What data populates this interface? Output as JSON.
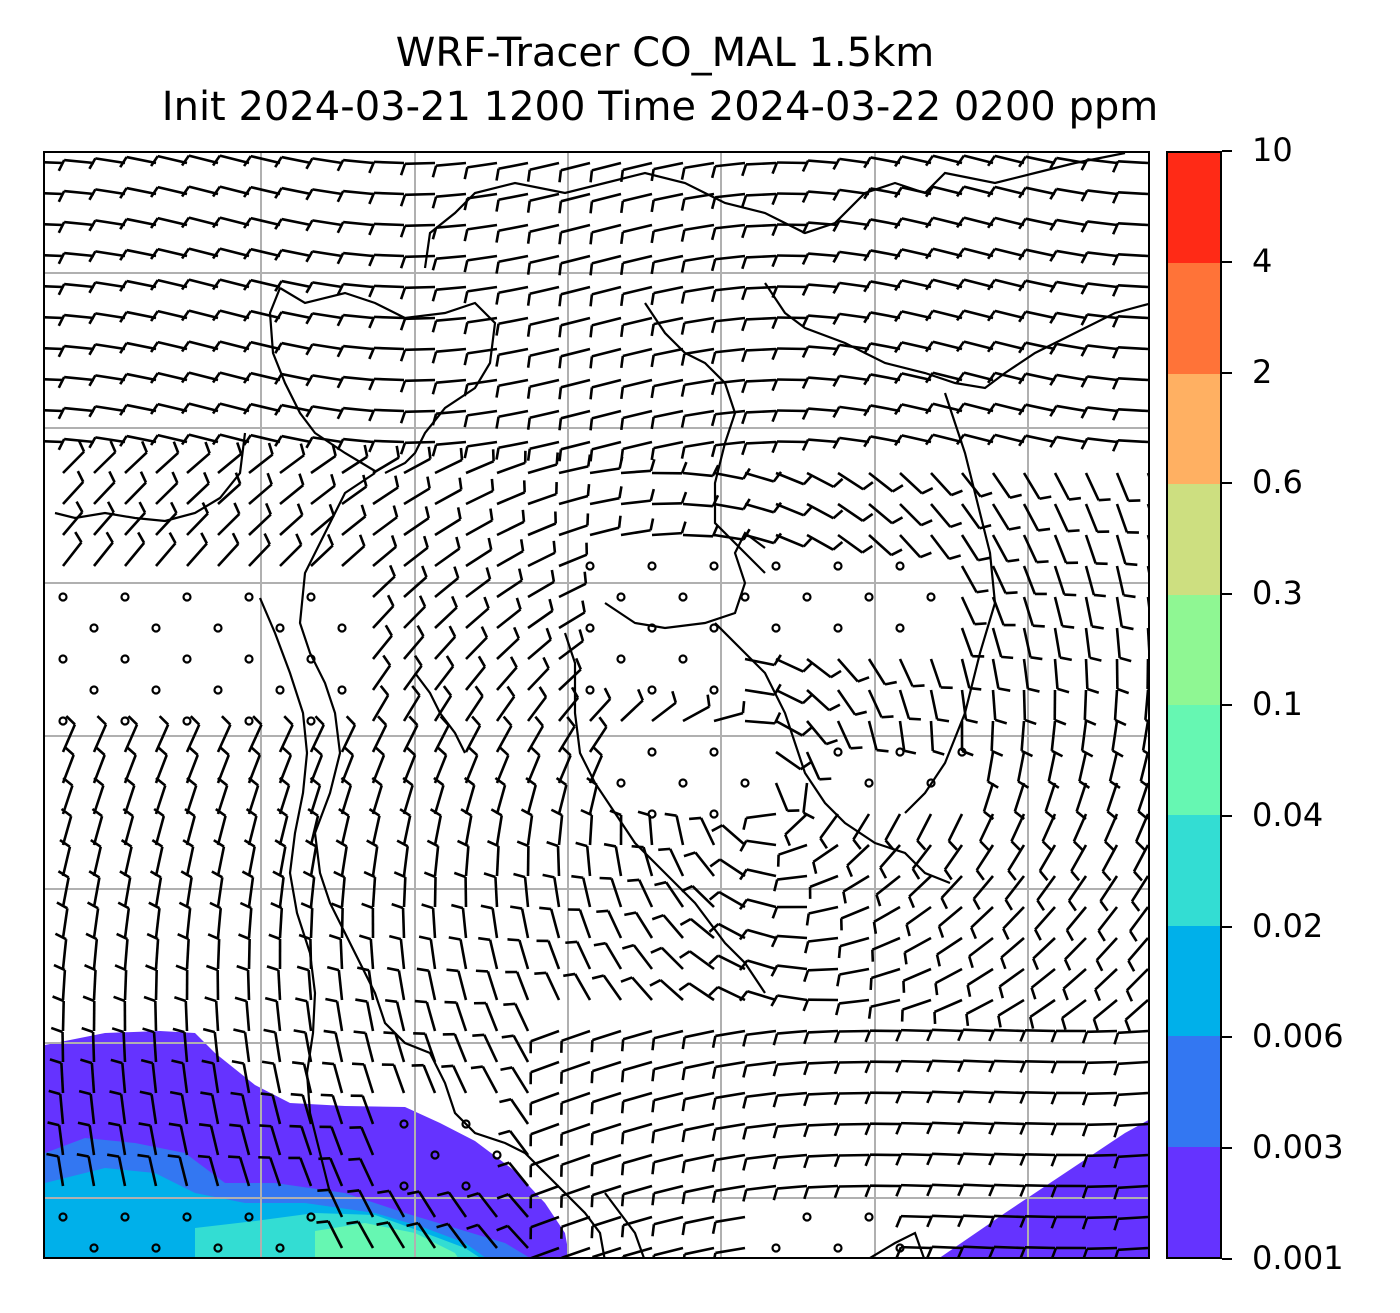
{
  "title": {
    "line1": "WRF-Tracer CO_MAL 1.5km",
    "line2": "Init 2024-03-21 1200 Time 2024-03-22 0200 ppm"
  },
  "colorbar": {
    "levels": [
      "0.001",
      "0.003",
      "0.006",
      "0.02",
      "0.04",
      "0.1",
      "0.3",
      "0.6",
      "2",
      "4",
      "10"
    ],
    "colors": [
      "#6533ff",
      "#3377f2",
      "#00b0ea",
      "#33ddd3",
      "#66f7b2",
      "#8ff793",
      "#cddf80",
      "#ffb062",
      "#ff7338",
      "#ff2a16"
    ]
  },
  "map": {
    "contour_fill_colors": {
      "lowest": "#6533ff",
      "low": "#3377f2",
      "mid": "#00b0ea",
      "higher": "#33ddd3",
      "highest_visible": "#66f7b2"
    },
    "gridline_color": "#b0b0b0",
    "coastline_color": "#000000",
    "wind_barb_color": "#000000"
  }
}
